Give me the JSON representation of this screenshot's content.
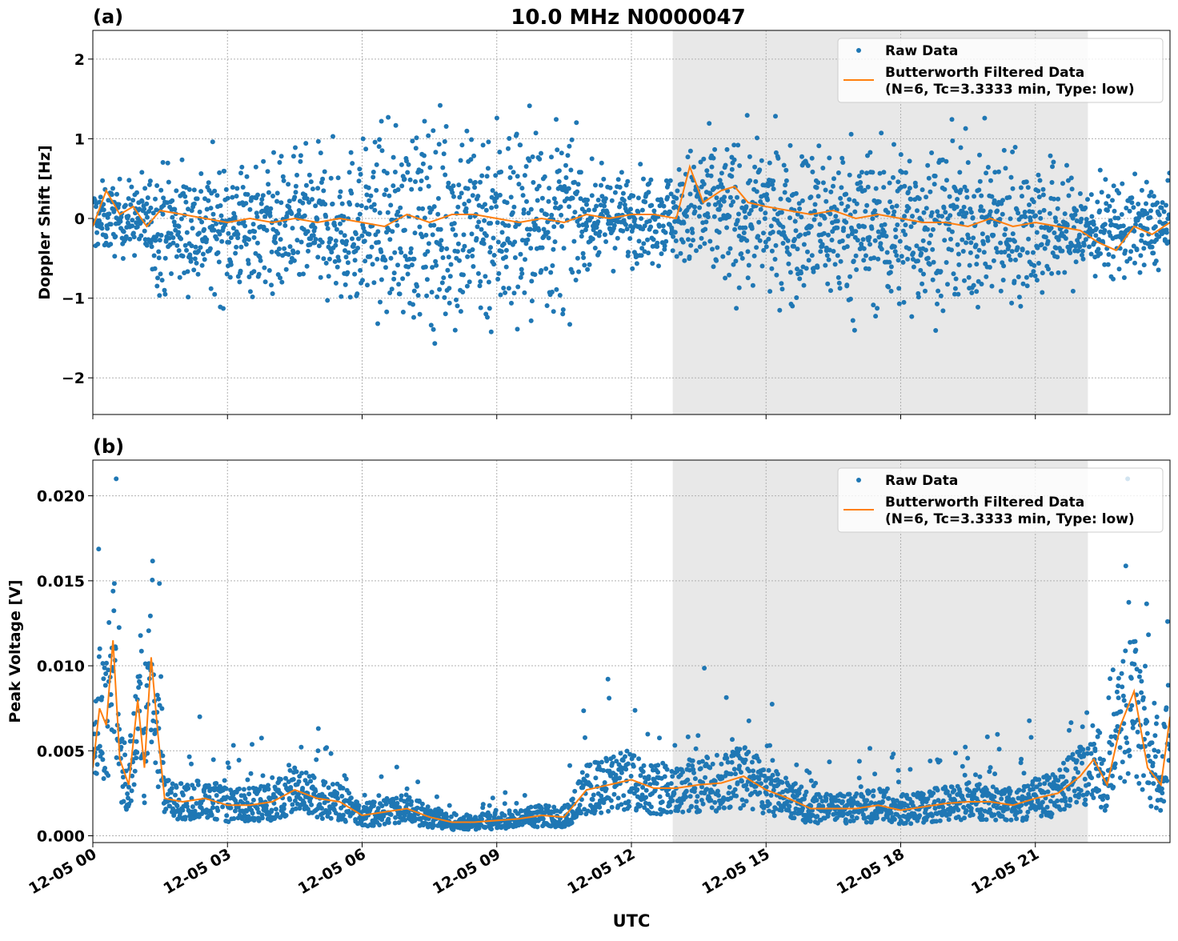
{
  "title": "10.0 MHz N0000047",
  "colors": {
    "raw": "#1f77b4",
    "filtered": "#ff7f0e",
    "shade": "#e8e8e8",
    "grid": "#b0b0b0"
  },
  "chart_data": [
    {
      "type": "scatter+line",
      "panel_label": "(a)",
      "title": "10.0 MHz N0000047",
      "xlabel": "",
      "ylabel": "Doppler Shift [Hz]",
      "x_unit": "hours UTC on 12-05",
      "xlim": [
        0,
        24
      ],
      "ylim": [
        -2.46,
        2.36
      ],
      "yticks": [
        -2,
        -1,
        0,
        1,
        2
      ],
      "ytick_labels": [
        "−2",
        "−1",
        "0",
        "1",
        "2"
      ],
      "grid": true,
      "legend_position": "top-right",
      "shaded_interval_hours": [
        12.92,
        22.17
      ],
      "series": [
        {
          "name": "Raw Data",
          "kind": "scatter",
          "envelope_hours": [
            0,
            1,
            1.5,
            3,
            5,
            6,
            8,
            9,
            10.5,
            11,
            13,
            13.5,
            15,
            17,
            19,
            21,
            22,
            24
          ],
          "center": [
            0,
            0,
            -0.1,
            -0.1,
            -0.1,
            -0.1,
            -0.05,
            -0.05,
            0,
            0,
            0.05,
            0.1,
            0,
            -0.1,
            -0.1,
            -0.1,
            -0.15,
            -0.1
          ],
          "halfwidth": [
            0.45,
            0.5,
            0.85,
            0.9,
            0.95,
            1.1,
            1.5,
            1.5,
            1.3,
            0.6,
            0.6,
            1.0,
            1.0,
            1.15,
            1.1,
            1.0,
            0.7,
            0.55
          ]
        },
        {
          "name": "Butterworth Filtered Data\n(N=6, Tc=3.3333 min, Type: low)",
          "kind": "line",
          "x": [
            0,
            0.3,
            0.6,
            0.9,
            1.2,
            1.5,
            2,
            2.5,
            3,
            3.5,
            4,
            4.5,
            5,
            5.5,
            6,
            6.5,
            7,
            7.5,
            8,
            8.5,
            9,
            9.5,
            10,
            10.5,
            11,
            11.5,
            12,
            12.5,
            13,
            13.3,
            13.6,
            14,
            14.3,
            14.6,
            15,
            15.5,
            16,
            16.5,
            17,
            17.5,
            18,
            18.5,
            19,
            19.5,
            20,
            20.5,
            21,
            21.5,
            22,
            22.4,
            22.8,
            23.2,
            23.6,
            24
          ],
          "y": [
            -0.1,
            0.35,
            0.05,
            0.15,
            -0.1,
            0.1,
            0.05,
            0,
            -0.05,
            0,
            -0.05,
            0,
            -0.05,
            0,
            -0.05,
            -0.1,
            0.05,
            -0.05,
            0.05,
            0.05,
            0,
            -0.05,
            0,
            -0.05,
            0.05,
            0,
            0.05,
            0.05,
            0,
            0.65,
            0.2,
            0.35,
            0.4,
            0.2,
            0.15,
            0.1,
            0.05,
            0.1,
            0,
            0.05,
            0,
            -0.05,
            -0.05,
            -0.1,
            0,
            -0.1,
            -0.05,
            -0.1,
            -0.15,
            -0.3,
            -0.4,
            -0.1,
            -0.2,
            -0.05
          ]
        }
      ]
    },
    {
      "type": "scatter+line",
      "panel_label": "(b)",
      "xlabel": "UTC",
      "ylabel": "Peak Voltage [V]",
      "xlim": [
        0,
        24
      ],
      "ylim": [
        -0.0004,
        0.0221
      ],
      "yticks": [
        0,
        0.005,
        0.01,
        0.015,
        0.02
      ],
      "ytick_labels": [
        "0.000",
        "0.005",
        "0.010",
        "0.015",
        "0.020"
      ],
      "xtick_hours": [
        0,
        3,
        6,
        9,
        12,
        15,
        18,
        21
      ],
      "xtick_labels": [
        "12-05 00",
        "12-05 03",
        "12-05 06",
        "12-05 09",
        "12-05 12",
        "12-05 15",
        "12-05 18",
        "12-05 21"
      ],
      "grid": true,
      "legend_position": "top-right",
      "shaded_interval_hours": [
        12.92,
        22.17
      ],
      "series": [
        {
          "name": "Raw Data",
          "kind": "scatter",
          "max_value": 0.021
        },
        {
          "name": "Butterworth Filtered Data\n(N=6, Tc=3.3333 min, Type: low)",
          "kind": "line",
          "x": [
            0,
            0.15,
            0.3,
            0.45,
            0.6,
            0.8,
            1.0,
            1.15,
            1.3,
            1.45,
            1.6,
            2,
            2.5,
            3,
            3.5,
            4,
            4.5,
            5,
            5.5,
            6,
            6.5,
            7,
            7.5,
            8,
            8.5,
            9,
            9.5,
            10,
            10.5,
            11,
            11.5,
            12,
            12.5,
            13,
            13.5,
            14,
            14.5,
            15,
            15.5,
            16,
            16.5,
            17,
            17.5,
            18,
            18.5,
            19,
            19.5,
            20,
            20.5,
            21,
            21.5,
            22,
            22.3,
            22.6,
            22.9,
            23.2,
            23.5,
            23.8,
            24
          ],
          "y": [
            0.004,
            0.0075,
            0.0065,
            0.0115,
            0.0045,
            0.003,
            0.008,
            0.004,
            0.0105,
            0.006,
            0.0022,
            0.002,
            0.0022,
            0.0018,
            0.0018,
            0.002,
            0.0027,
            0.0022,
            0.002,
            0.0012,
            0.0014,
            0.0016,
            0.0011,
            0.0008,
            0.0008,
            0.0009,
            0.001,
            0.0012,
            0.0011,
            0.0027,
            0.003,
            0.0033,
            0.0028,
            0.0028,
            0.003,
            0.0031,
            0.0035,
            0.0027,
            0.0022,
            0.0016,
            0.0016,
            0.0016,
            0.0018,
            0.0015,
            0.0017,
            0.0019,
            0.002,
            0.002,
            0.0018,
            0.0022,
            0.0025,
            0.0035,
            0.0045,
            0.003,
            0.0065,
            0.0085,
            0.004,
            0.003,
            0.007
          ]
        }
      ]
    }
  ]
}
